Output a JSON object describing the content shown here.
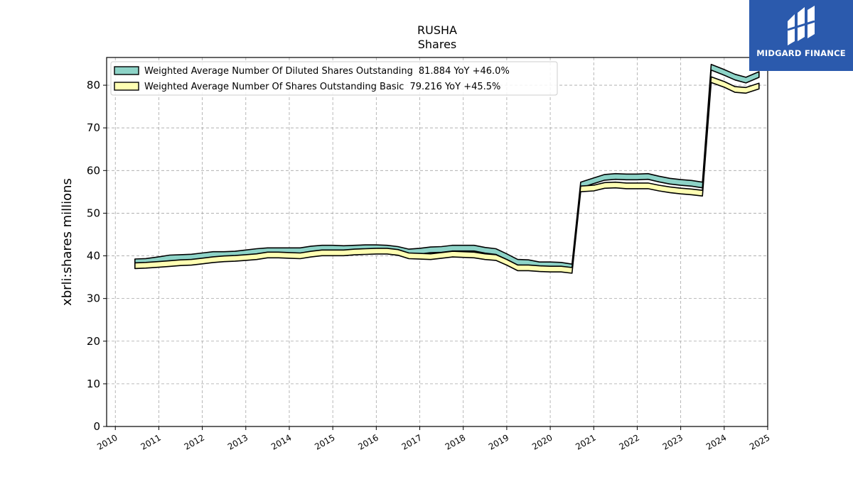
{
  "chart_data": {
    "type": "area",
    "title": "RUSHA",
    "subtitle": "Shares",
    "ylabel": "xbrli:shares millions",
    "xlim": [
      2009.8,
      2025.0
    ],
    "ylim": [
      0,
      86.5
    ],
    "yticks": [
      0,
      10,
      20,
      30,
      40,
      50,
      60,
      70,
      80
    ],
    "xticks": [
      "2010",
      "2011",
      "2012",
      "2013",
      "2014",
      "2015",
      "2016",
      "2017",
      "2018",
      "2019",
      "2020",
      "2021",
      "2022",
      "2023",
      "2024",
      "2025"
    ],
    "grid": true,
    "legend_position": "top-left",
    "series": [
      {
        "name": "Weighted Average Number Of Diluted Shares Outstanding",
        "legend_value": "81.884",
        "legend_yoy": "YoY +46.0%",
        "color": "#8dd3c7",
        "x": [
          2010.45,
          2010.7,
          2011.0,
          2011.25,
          2011.5,
          2011.75,
          2012.0,
          2012.25,
          2012.5,
          2012.75,
          2013.0,
          2013.25,
          2013.5,
          2013.75,
          2014.0,
          2014.25,
          2014.5,
          2014.75,
          2015.0,
          2015.25,
          2015.5,
          2015.75,
          2016.0,
          2016.25,
          2016.5,
          2016.75,
          2017.0,
          2017.25,
          2017.5,
          2017.75,
          2018.0,
          2018.25,
          2018.5,
          2018.75,
          2019.0,
          2019.25,
          2019.5,
          2019.75,
          2020.0,
          2020.25,
          2020.5,
          2020.7,
          2021.0,
          2021.25,
          2021.5,
          2021.75,
          2022.0,
          2022.25,
          2022.5,
          2022.75,
          2023.0,
          2023.25,
          2023.5,
          2023.7,
          2024.0,
          2024.25,
          2024.5,
          2024.8
        ],
        "values": [
          38.6,
          38.7,
          39.1,
          39.5,
          39.6,
          39.7,
          40.0,
          40.3,
          40.3,
          40.4,
          40.7,
          41.0,
          41.2,
          41.2,
          41.2,
          41.2,
          41.6,
          41.8,
          41.8,
          41.7,
          41.8,
          41.9,
          41.9,
          41.8,
          41.5,
          40.9,
          41.1,
          41.4,
          41.5,
          41.8,
          41.8,
          41.8,
          41.3,
          41.0,
          39.8,
          38.5,
          38.4,
          37.9,
          37.9,
          37.8,
          37.4,
          56.6,
          57.6,
          58.4,
          58.6,
          58.5,
          58.5,
          58.6,
          58.0,
          57.5,
          57.2,
          57.0,
          56.6,
          84.2,
          83.0,
          81.9,
          81.2,
          82.5
        ]
      },
      {
        "name": "Weighted Average Number Of Shares Outstanding Basic",
        "legend_value": "79.216",
        "legend_yoy": "YoY +45.5%",
        "color": "#ffffb3",
        "x": [
          2010.45,
          2010.7,
          2011.0,
          2011.25,
          2011.5,
          2011.75,
          2012.0,
          2012.25,
          2012.5,
          2012.75,
          2013.0,
          2013.25,
          2013.5,
          2013.75,
          2014.0,
          2014.25,
          2014.5,
          2014.75,
          2015.0,
          2015.25,
          2015.5,
          2015.75,
          2016.0,
          2016.25,
          2016.5,
          2016.75,
          2017.0,
          2017.25,
          2017.5,
          2017.75,
          2018.0,
          2018.25,
          2018.5,
          2018.75,
          2019.0,
          2019.25,
          2019.5,
          2019.75,
          2020.0,
          2020.25,
          2020.5,
          2020.7,
          2021.0,
          2021.25,
          2021.5,
          2021.75,
          2022.0,
          2022.25,
          2022.5,
          2022.75,
          2023.0,
          2023.25,
          2023.5,
          2023.7,
          2024.0,
          2024.25,
          2024.5,
          2024.8
        ],
        "values": [
          37.7,
          37.8,
          38.0,
          38.2,
          38.4,
          38.5,
          38.8,
          39.1,
          39.3,
          39.4,
          39.6,
          39.8,
          40.2,
          40.2,
          40.1,
          40.0,
          40.4,
          40.7,
          40.7,
          40.7,
          40.9,
          41.0,
          41.1,
          41.1,
          40.8,
          40.0,
          39.9,
          39.8,
          40.1,
          40.4,
          40.3,
          40.2,
          39.8,
          39.6,
          38.5,
          37.2,
          37.2,
          37.0,
          36.9,
          36.9,
          36.6,
          55.7,
          55.9,
          56.5,
          56.6,
          56.4,
          56.4,
          56.4,
          55.9,
          55.5,
          55.2,
          55.0,
          54.7,
          81.3,
          80.2,
          79.0,
          78.8,
          79.8
        ]
      }
    ]
  },
  "logo": {
    "text": "MIDGARD FINANCE",
    "color": "#2b5aad"
  }
}
